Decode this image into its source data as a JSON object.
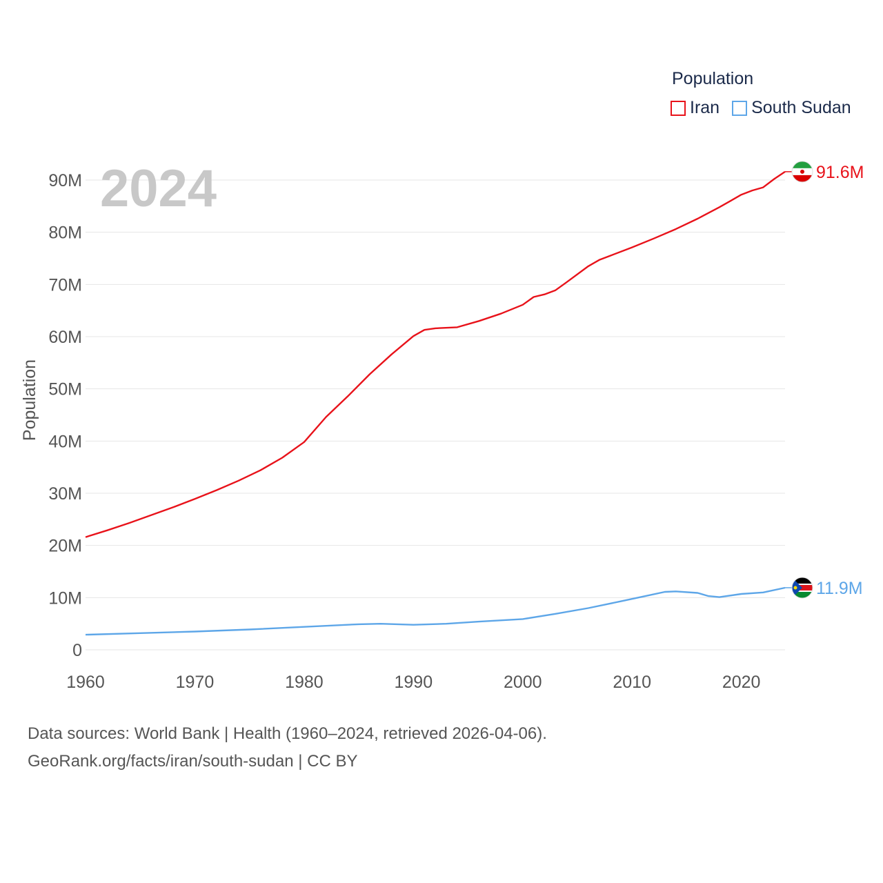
{
  "chart_data": {
    "type": "line",
    "year_label": "2024",
    "ylabel": "Population",
    "xlabel": "",
    "ylim": [
      0,
      90000000
    ],
    "xlim": [
      1960,
      2024
    ],
    "x_ticks": [
      1960,
      1970,
      1980,
      1990,
      2000,
      2010,
      2020
    ],
    "y_ticks": [
      {
        "value": 0,
        "label": "0"
      },
      {
        "value": 10000000,
        "label": "10M"
      },
      {
        "value": 20000000,
        "label": "20M"
      },
      {
        "value": 30000000,
        "label": "30M"
      },
      {
        "value": 40000000,
        "label": "40M"
      },
      {
        "value": 50000000,
        "label": "50M"
      },
      {
        "value": 60000000,
        "label": "60M"
      },
      {
        "value": 70000000,
        "label": "70M"
      },
      {
        "value": 80000000,
        "label": "80M"
      },
      {
        "value": 90000000,
        "label": "90M"
      }
    ],
    "series": [
      {
        "name": "Iran",
        "color": "#e8121a",
        "end_label": "91.6M",
        "flag": "iran-flag-icon",
        "points": [
          [
            1960,
            21.6
          ],
          [
            1962,
            22.9
          ],
          [
            1964,
            24.3
          ],
          [
            1966,
            25.8
          ],
          [
            1968,
            27.3
          ],
          [
            1970,
            28.9
          ],
          [
            1972,
            30.6
          ],
          [
            1974,
            32.4
          ],
          [
            1976,
            34.4
          ],
          [
            1978,
            36.8
          ],
          [
            1980,
            39.8
          ],
          [
            1982,
            44.6
          ],
          [
            1984,
            48.6
          ],
          [
            1986,
            52.8
          ],
          [
            1988,
            56.6
          ],
          [
            1990,
            60.1
          ],
          [
            1991,
            61.3
          ],
          [
            1992,
            61.6
          ],
          [
            1994,
            61.8
          ],
          [
            1996,
            63.0
          ],
          [
            1998,
            64.4
          ],
          [
            2000,
            66.1
          ],
          [
            2001,
            67.6
          ],
          [
            2002,
            68.1
          ],
          [
            2003,
            68.9
          ],
          [
            2004,
            70.4
          ],
          [
            2006,
            73.5
          ],
          [
            2007,
            74.7
          ],
          [
            2008,
            75.5
          ],
          [
            2010,
            77.1
          ],
          [
            2012,
            78.8
          ],
          [
            2014,
            80.6
          ],
          [
            2016,
            82.6
          ],
          [
            2018,
            84.8
          ],
          [
            2019,
            86.0
          ],
          [
            2020,
            87.2
          ],
          [
            2021,
            88.0
          ],
          [
            2022,
            88.6
          ],
          [
            2023,
            90.2
          ],
          [
            2024,
            91.6
          ]
        ]
      },
      {
        "name": "South Sudan",
        "color": "#5da6e8",
        "end_label": "11.9M",
        "flag": "south-sudan-flag-icon",
        "points": [
          [
            1960,
            2.9
          ],
          [
            1965,
            3.2
          ],
          [
            1970,
            3.5
          ],
          [
            1975,
            3.9
          ],
          [
            1980,
            4.4
          ],
          [
            1985,
            4.9
          ],
          [
            1987,
            5.0
          ],
          [
            1990,
            4.8
          ],
          [
            1993,
            5.0
          ],
          [
            1996,
            5.4
          ],
          [
            2000,
            5.9
          ],
          [
            2003,
            6.9
          ],
          [
            2006,
            8.0
          ],
          [
            2009,
            9.3
          ],
          [
            2011,
            10.2
          ],
          [
            2013,
            11.1
          ],
          [
            2014,
            11.2
          ],
          [
            2016,
            10.9
          ],
          [
            2017,
            10.3
          ],
          [
            2018,
            10.1
          ],
          [
            2020,
            10.7
          ],
          [
            2022,
            11.0
          ],
          [
            2024,
            11.9
          ]
        ]
      }
    ]
  },
  "legend": {
    "title": "Population",
    "items": [
      {
        "name": "Iran",
        "color": "#e8121a"
      },
      {
        "name": "South Sudan",
        "color": "#5da6e8"
      }
    ]
  },
  "footer": {
    "sources": "Data sources: World Bank | Health (1960–2024, retrieved 2026-04-06).",
    "url_line": "GeoRank.org/facts/iran/south-sudan | CC BY"
  }
}
